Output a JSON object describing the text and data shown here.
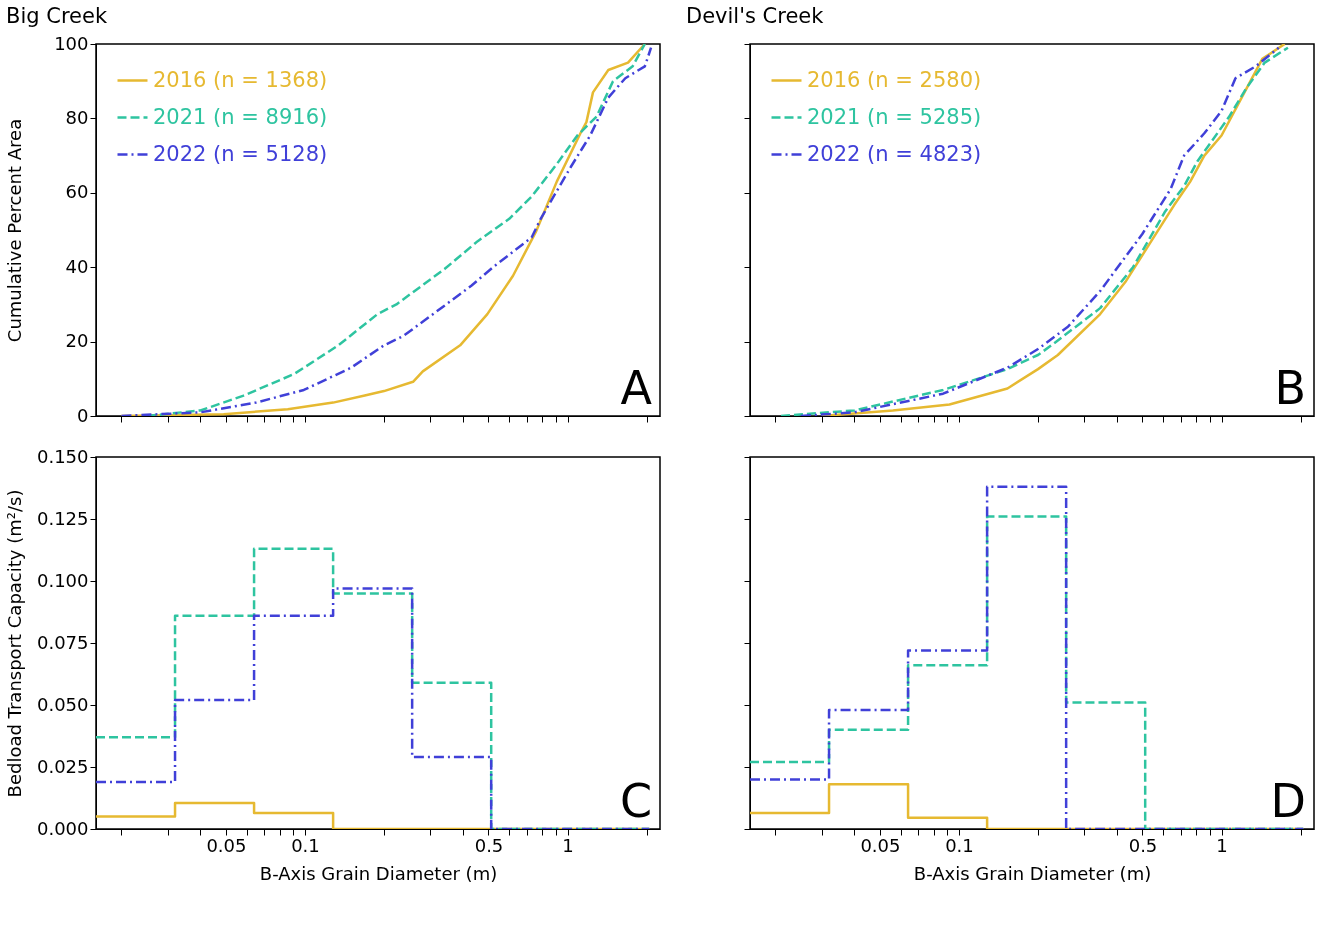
{
  "chart_data": [
    {
      "type": "line",
      "title": "Big Creek",
      "ylabel": "Cumulative Percent Area",
      "log": "x",
      "grid": false,
      "legend": "top left",
      "tick_labels": "y",
      "annotations": [
        "A"
      ],
      "xlim": [
        0.016,
        2.25
      ],
      "xticks": [
        {
          "value": 0.02,
          "label": null
        },
        {
          "value": 0.03,
          "label": null
        },
        {
          "value": 0.04,
          "label": null
        },
        0.05,
        {
          "value": 0.06,
          "label": null
        },
        {
          "value": 0.07,
          "label": null
        },
        {
          "value": 0.08,
          "label": null
        },
        {
          "value": 0.09,
          "label": null
        },
        0.1,
        {
          "value": 0.2,
          "label": null
        },
        {
          "value": 0.3,
          "label": null
        },
        {
          "value": 0.4,
          "label": null
        },
        0.5,
        {
          "value": 0.6,
          "label": null
        },
        {
          "value": 0.7,
          "label": null
        },
        {
          "value": 0.8,
          "label": null
        },
        {
          "value": 0.9,
          "label": null
        },
        1,
        {
          "value": 2,
          "label": null
        }
      ],
      "ylim": [
        0,
        100
      ],
      "yticks": [
        0,
        20,
        40,
        60,
        80,
        100
      ],
      "series": [
        {
          "name": "2016 (n = 1368)",
          "color": "#e6b931",
          "line_style": "solid",
          "x": [
            0.02,
            0.049,
            0.086,
            0.128,
            0.169,
            0.2,
            0.258,
            0.281,
            0.39,
            0.495,
            0.62,
            0.76,
            0.91,
            1.12,
            1.18,
            1.25,
            1.43,
            1.7,
            1.97
          ],
          "values": [
            0,
            0.5,
            1.8,
            3.6,
            5.5,
            6.7,
            9.2,
            12,
            19,
            27.4,
            37.7,
            49.7,
            63,
            76,
            79,
            87,
            93,
            95,
            100
          ]
        },
        {
          "name": "2021 (n = 8916)",
          "color": "#2ec4a0",
          "line_style": "dashed",
          "x": [
            0.025,
            0.04,
            0.058,
            0.091,
            0.134,
            0.189,
            0.223,
            0.34,
            0.455,
            0.6,
            0.73,
            0.91,
            1.09,
            1.29,
            1.49,
            1.77,
            1.97
          ],
          "values": [
            0,
            1.5,
            5.4,
            11.3,
            19,
            27.4,
            30,
            39.5,
            47,
            53,
            59,
            67.7,
            75.4,
            80.5,
            90,
            94,
            100
          ]
        },
        {
          "name": "2022 (n = 5128)",
          "color": "#4040d8",
          "line_style": "dashdot",
          "x": [
            0.02,
            0.04,
            0.065,
            0.099,
            0.15,
            0.2,
            0.237,
            0.43,
            0.52,
            0.73,
            0.79,
            1.03,
            1.22,
            1.43,
            1.66,
            1.97,
            2.08
          ],
          "values": [
            0,
            1,
            3.6,
            7,
            13,
            19,
            21.5,
            35,
            40,
            48,
            53,
            67,
            75.4,
            85.6,
            90.8,
            94,
            99
          ]
        }
      ]
    },
    {
      "type": "line",
      "title": "Devil's Creek",
      "log": "x",
      "grid": false,
      "legend": "top left",
      "tick_labels": false,
      "annotations": [
        "B"
      ],
      "xlim": [
        0.016,
        2.25
      ],
      "xticks": [
        {
          "value": 0.02,
          "label": null
        },
        {
          "value": 0.03,
          "label": null
        },
        {
          "value": 0.04,
          "label": null
        },
        0.05,
        {
          "value": 0.06,
          "label": null
        },
        {
          "value": 0.07,
          "label": null
        },
        {
          "value": 0.08,
          "label": null
        },
        {
          "value": 0.09,
          "label": null
        },
        0.1,
        {
          "value": 0.2,
          "label": null
        },
        {
          "value": 0.3,
          "label": null
        },
        {
          "value": 0.4,
          "label": null
        },
        0.5,
        {
          "value": 0.6,
          "label": null
        },
        {
          "value": 0.7,
          "label": null
        },
        {
          "value": 0.8,
          "label": null
        },
        {
          "value": 0.9,
          "label": null
        },
        1,
        {
          "value": 2,
          "label": null
        }
      ],
      "ylim": [
        0,
        100
      ],
      "yticks": [
        0,
        20,
        40,
        60,
        80,
        100
      ],
      "series": [
        {
          "name": "2016 (n = 2580)",
          "color": "#e6b931",
          "line_style": "solid",
          "x": [
            0.03,
            0.056,
            0.092,
            0.153,
            0.2,
            0.238,
            0.345,
            0.43,
            0.54,
            0.66,
            0.76,
            0.86,
            1,
            1.21,
            1.43,
            1.74
          ],
          "values": [
            0,
            1.5,
            3.1,
            7.4,
            12.6,
            16.4,
            27.4,
            36,
            47,
            56.7,
            63,
            70,
            75.4,
            86.4,
            96,
            100
          ]
        },
        {
          "name": "2021 (n = 5285)",
          "color": "#2ec4a0",
          "line_style": "dashed",
          "x": [
            0.021,
            0.04,
            0.087,
            0.153,
            0.2,
            0.225,
            0.345,
            0.46,
            0.61,
            0.72,
            0.81,
            1.07,
            1.24,
            1.46,
            1.79
          ],
          "values": [
            0,
            1.5,
            7,
            12.6,
            16.4,
            19,
            29,
            40,
            55,
            61.8,
            68.5,
            80.5,
            88,
            95,
            99
          ]
        },
        {
          "name": "2022 (n = 4823)",
          "color": "#4040d8",
          "line_style": "dashdot",
          "x": [
            0.025,
            0.04,
            0.087,
            0.153,
            0.2,
            0.26,
            0.345,
            0.5,
            0.64,
            0.72,
            0.86,
            1,
            1.13,
            1.35,
            1.65
          ],
          "values": [
            0,
            1,
            6,
            13,
            18,
            24,
            33.6,
            49,
            61,
            70,
            76,
            82,
            90.8,
            94,
            99
          ]
        }
      ]
    },
    {
      "type": "histogram",
      "ylabel": "Bedload Transport Capacity (m²/s)",
      "xlabel": "B-Axis Grain Diameter (m)",
      "log": "x",
      "grid": false,
      "annotations": [
        "C"
      ],
      "xlim": [
        0.016,
        2.25
      ],
      "xticks": [
        {
          "value": 0.02,
          "label": null
        },
        {
          "value": 0.03,
          "label": null
        },
        {
          "value": 0.04,
          "label": null
        },
        0.05,
        {
          "value": 0.06,
          "label": null
        },
        {
          "value": 0.07,
          "label": null
        },
        {
          "value": 0.08,
          "label": null
        },
        {
          "value": 0.09,
          "label": null
        },
        0.1,
        {
          "value": 0.2,
          "label": null
        },
        {
          "value": 0.3,
          "label": null
        },
        {
          "value": 0.4,
          "label": null
        },
        0.5,
        {
          "value": 0.6,
          "label": null
        },
        {
          "value": 0.7,
          "label": null
        },
        {
          "value": 0.8,
          "label": null
        },
        {
          "value": 0.9,
          "label": null
        },
        1,
        {
          "value": 2,
          "label": null
        }
      ],
      "ylim": [
        0,
        0.15
      ],
      "yticks": [
        {
          "value": 0,
          "label": "0.000"
        },
        {
          "value": 0.025,
          "label": "0.025"
        },
        {
          "value": 0.05,
          "label": "0.050"
        },
        {
          "value": 0.075,
          "label": "0.075"
        },
        {
          "value": 0.1,
          "label": "0.100"
        },
        {
          "value": 0.125,
          "label": "0.125"
        },
        {
          "value": 0.15,
          "label": "0.150"
        }
      ],
      "bins": [
        0.016,
        0.032,
        0.064,
        0.128,
        0.256,
        0.512,
        1.024,
        2.048
      ],
      "series": [
        {
          "color": "#e6b931",
          "line_style": "solid",
          "values": [
            0.005,
            0.0105,
            0.0065,
            0,
            0,
            0,
            0
          ]
        },
        {
          "color": "#2ec4a0",
          "line_style": "dashed",
          "values": [
            0.037,
            0.086,
            0.113,
            0.095,
            0.059,
            0,
            0
          ]
        },
        {
          "color": "#4040d8",
          "line_style": "dashdot",
          "values": [
            0.019,
            0.052,
            0.086,
            0.097,
            0.029,
            0,
            0
          ]
        }
      ]
    },
    {
      "type": "histogram",
      "xlabel": "B-Axis Grain Diameter (m)",
      "log": "x",
      "grid": false,
      "tick_labels": "x",
      "annotations": [
        "D"
      ],
      "xlim": [
        0.016,
        2.25
      ],
      "xticks": [
        {
          "value": 0.02,
          "label": null
        },
        {
          "value": 0.03,
          "label": null
        },
        {
          "value": 0.04,
          "label": null
        },
        0.05,
        {
          "value": 0.06,
          "label": null
        },
        {
          "value": 0.07,
          "label": null
        },
        {
          "value": 0.08,
          "label": null
        },
        {
          "value": 0.09,
          "label": null
        },
        0.1,
        {
          "value": 0.2,
          "label": null
        },
        {
          "value": 0.3,
          "label": null
        },
        {
          "value": 0.4,
          "label": null
        },
        0.5,
        {
          "value": 0.6,
          "label": null
        },
        {
          "value": 0.7,
          "label": null
        },
        {
          "value": 0.8,
          "label": null
        },
        {
          "value": 0.9,
          "label": null
        },
        1,
        {
          "value": 2,
          "label": null
        }
      ],
      "ylim": [
        0,
        0.15
      ],
      "yticks": [
        0,
        0.025,
        0.05,
        0.075,
        0.1,
        0.125,
        0.15
      ],
      "bins": [
        0.016,
        0.032,
        0.064,
        0.128,
        0.256,
        0.512,
        1.024,
        2.048
      ],
      "series": [
        {
          "color": "#e6b931",
          "line_style": "solid",
          "values": [
            0.0065,
            0.018,
            0.0045,
            0,
            0,
            0,
            0
          ]
        },
        {
          "color": "#2ec4a0",
          "line_style": "dashed",
          "values": [
            0.027,
            0.04,
            0.066,
            0.126,
            0.051,
            0,
            0
          ]
        },
        {
          "color": "#4040d8",
          "line_style": "dashdot",
          "values": [
            0.02,
            0.048,
            0.072,
            0.138,
            0,
            0,
            0
          ]
        }
      ]
    }
  ]
}
